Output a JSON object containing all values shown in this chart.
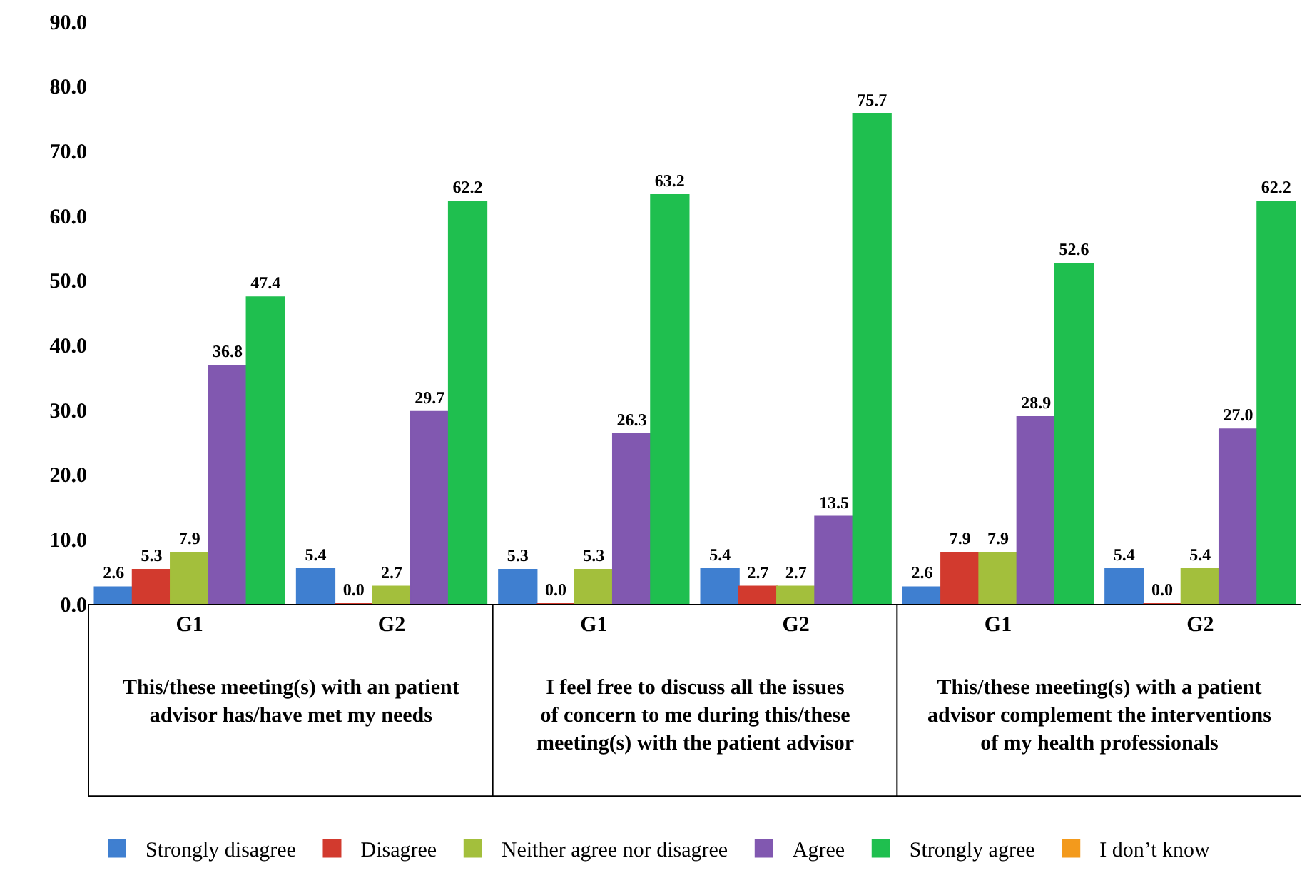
{
  "chart_data": {
    "type": "bar",
    "categories": [
      "G1",
      "G2",
      "G1",
      "G2",
      "G1",
      "G2"
    ],
    "series": [
      {
        "name": "Strongly disagree",
        "color": "#3f7fd0",
        "values": [
          2.6,
          5.4,
          5.3,
          5.4,
          2.6,
          5.4
        ],
        "value_labels": [
          "2.6",
          "5.4",
          "5.3",
          "5.4",
          "2.6",
          "5.4"
        ]
      },
      {
        "name": "Disagree",
        "color": "#d23a2e",
        "values": [
          5.3,
          0.0,
          0.0,
          2.7,
          7.9,
          0.0
        ],
        "value_labels": [
          "5.3",
          "0.0",
          "0.0",
          "2.7",
          "7.9",
          "0.0"
        ]
      },
      {
        "name": "Neither agree nor disagree",
        "color": "#a3bf3c",
        "values": [
          7.9,
          2.7,
          5.3,
          2.7,
          7.9,
          5.4
        ],
        "value_labels": [
          "7.9",
          "2.7",
          "5.3",
          "2.7",
          "7.9",
          "5.4"
        ]
      },
      {
        "name": "Agree",
        "color": "#8158b0",
        "values": [
          36.8,
          29.7,
          26.3,
          13.5,
          28.9,
          27.0
        ],
        "value_labels": [
          "36.8",
          "29.7",
          "26.3",
          "13.5",
          "28.9",
          "27.0"
        ]
      },
      {
        "name": "Strongly agree",
        "color": "#1fbf4f",
        "values": [
          47.4,
          62.2,
          63.2,
          75.7,
          52.6,
          62.2
        ],
        "value_labels": [
          "47.4",
          "62.2",
          "63.2",
          "75.7",
          "52.6",
          "62.2"
        ]
      },
      {
        "name": "I don’t know",
        "color": "#f39a1c",
        "values": [
          null,
          null,
          null,
          null,
          null,
          null
        ]
      }
    ],
    "annotations": [
      "This/these meeting(s) with an patient advisor has/have met my needs",
      "I feel free to discuss all the issues of concern to me during this/these meeting(s) with the patient advisor",
      "This/these meeting(s) with a patient advisor complement the interventions of my health professionals"
    ],
    "ylim": [
      0,
      90
    ],
    "yticks": [
      {
        "value": 0,
        "label": "0.0"
      },
      {
        "value": 10,
        "label": "10.0"
      },
      {
        "value": 20,
        "label": "20.0"
      },
      {
        "value": 30,
        "label": "30.0"
      },
      {
        "value": 40,
        "label": "40.0"
      },
      {
        "value": 50,
        "label": "50.0"
      },
      {
        "value": 60,
        "label": "60.0"
      },
      {
        "value": 70,
        "label": "70.0"
      },
      {
        "value": 80,
        "label": "80.0"
      },
      {
        "value": 90,
        "label": "90.0"
      }
    ],
    "grid": false,
    "legend": "bottom"
  }
}
